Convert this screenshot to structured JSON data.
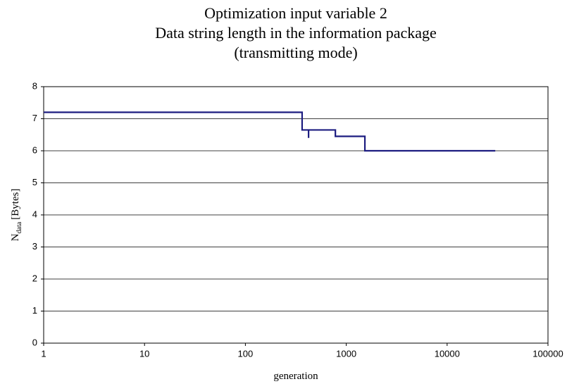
{
  "chart_data": {
    "type": "line",
    "title": [
      "Optimization input variable 2",
      "Data string length in the information package",
      "(transmitting mode)"
    ],
    "xlabel": "generation",
    "ylabel": [
      "N",
      "data",
      "[Bytes]"
    ],
    "xscale": "log",
    "xlim": [
      1,
      100000
    ],
    "xticks": [
      1,
      10,
      100,
      1000,
      10000,
      100000
    ],
    "ylim": [
      0,
      8
    ],
    "yticks": [
      0,
      1,
      2,
      3,
      4,
      5,
      6,
      7,
      8
    ],
    "grid": true,
    "series": [
      {
        "color": "#1c1c80",
        "x": [
          1,
          365,
          365,
          423,
          423,
          423,
          780,
          780,
          1530,
          1530,
          30000
        ],
        "values": [
          7.2,
          7.2,
          6.65,
          6.65,
          6.4,
          6.65,
          6.65,
          6.45,
          6.45,
          6.0,
          6.0
        ]
      }
    ]
  }
}
